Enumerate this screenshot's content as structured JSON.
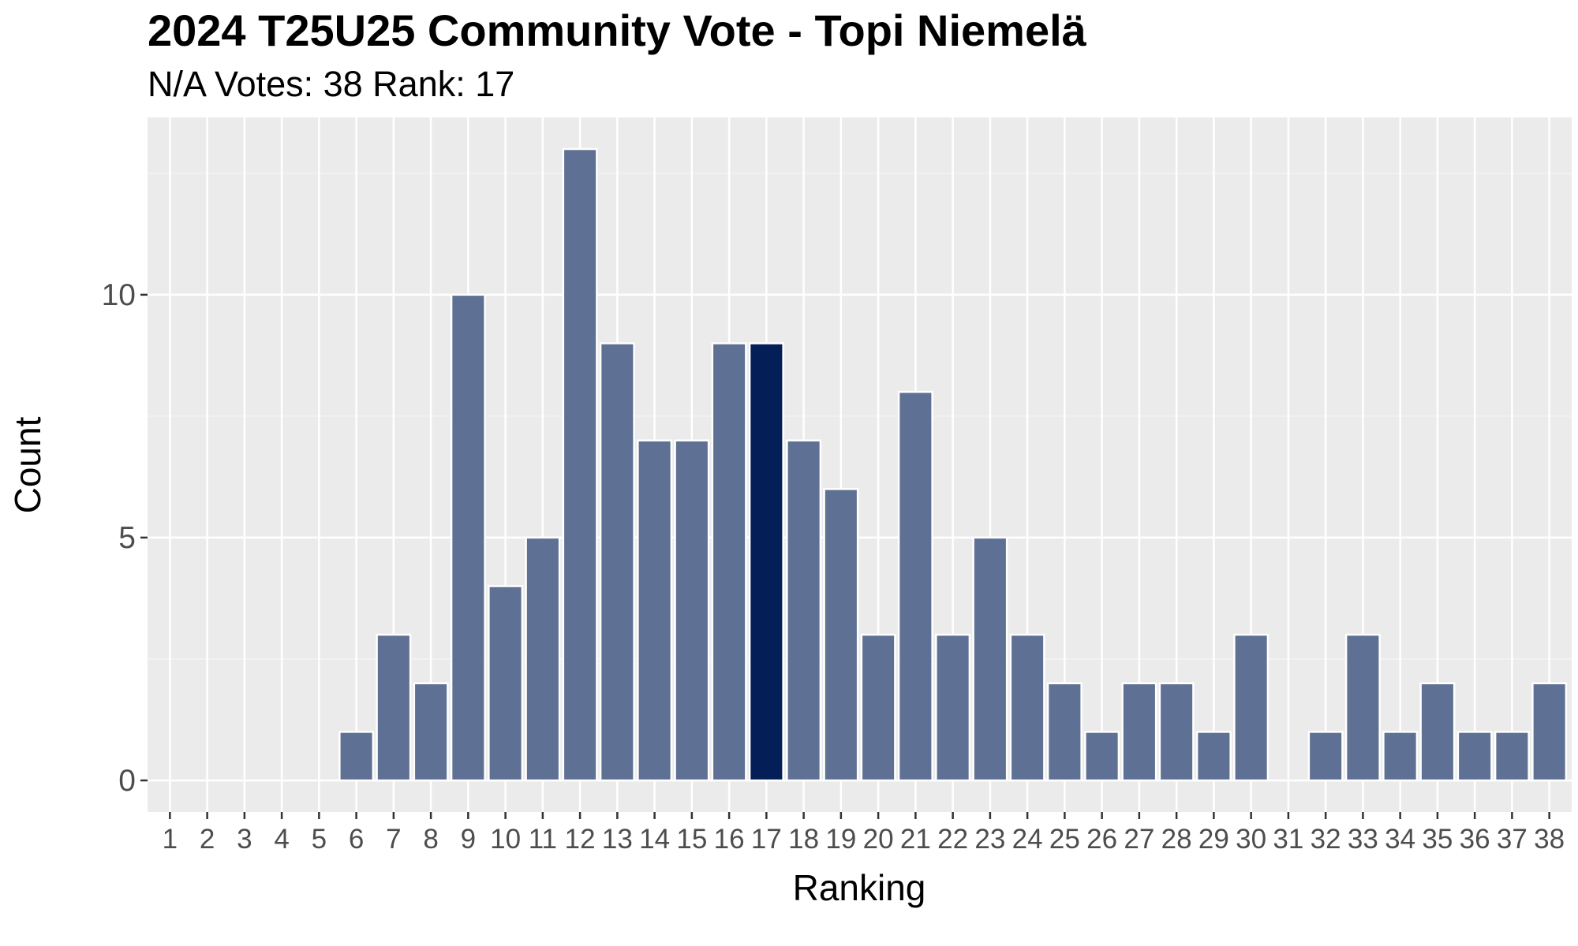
{
  "chart_data": {
    "type": "bar",
    "title": "2024 T25U25 Community Vote - Topi Niemelä",
    "subtitle": "N/A Votes: 38  Rank: 17",
    "xlabel": "Ranking",
    "ylabel": "Count",
    "categories": [
      "1",
      "2",
      "3",
      "4",
      "5",
      "6",
      "7",
      "8",
      "9",
      "10",
      "11",
      "12",
      "13",
      "14",
      "15",
      "16",
      "17",
      "18",
      "19",
      "20",
      "21",
      "22",
      "23",
      "24",
      "25",
      "26",
      "27",
      "28",
      "29",
      "30",
      "31",
      "32",
      "33",
      "34",
      "35",
      "36",
      "37",
      "38"
    ],
    "values": [
      0,
      0,
      0,
      0,
      0,
      1,
      3,
      2,
      10,
      4,
      5,
      13,
      9,
      7,
      7,
      9,
      9,
      7,
      6,
      3,
      8,
      3,
      5,
      3,
      2,
      1,
      2,
      2,
      1,
      3,
      0,
      1,
      3,
      1,
      2,
      1,
      1,
      2
    ],
    "highlight_category": "17",
    "yticks": [
      0,
      5,
      10
    ],
    "ylim": [
      -0.65,
      13.65
    ],
    "grid": true,
    "colors": {
      "bar": "#5e7093",
      "highlight": "#041e57",
      "bar_outline": "#ffffff",
      "panel": "#ebebeb",
      "grid_major": "#ffffff",
      "grid_minor": "#f4f4f4"
    }
  }
}
